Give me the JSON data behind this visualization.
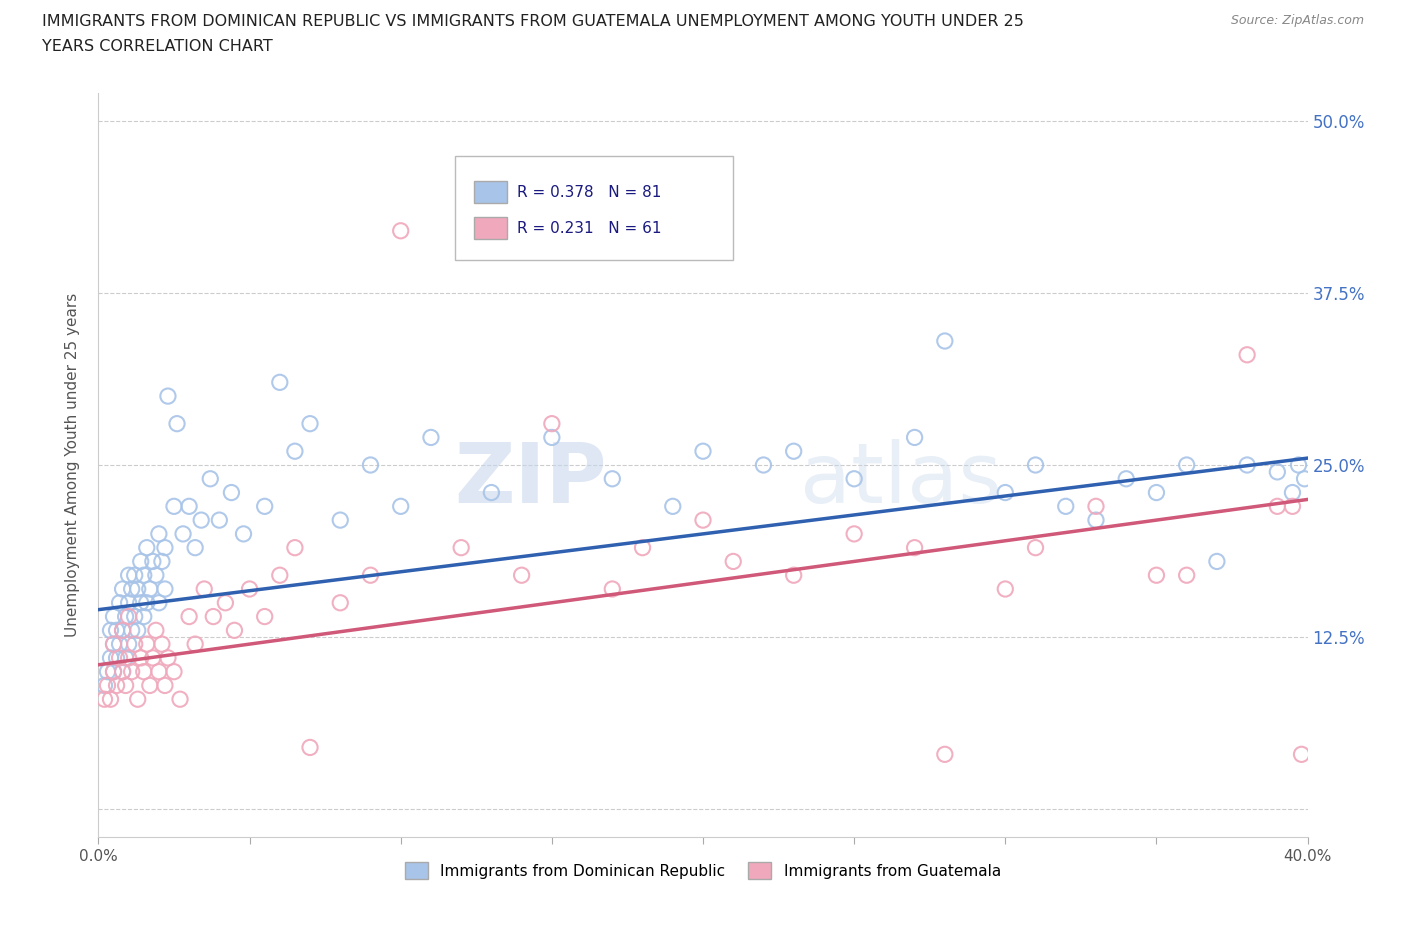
{
  "title_line1": "IMMIGRANTS FROM DOMINICAN REPUBLIC VS IMMIGRANTS FROM GUATEMALA UNEMPLOYMENT AMONG YOUTH UNDER 25",
  "title_line2": "YEARS CORRELATION CHART",
  "source": "Source: ZipAtlas.com",
  "xlabel_blue": "Immigrants from Dominican Republic",
  "xlabel_pink": "Immigrants from Guatemala",
  "ylabel": "Unemployment Among Youth under 25 years",
  "R_blue": 0.378,
  "N_blue": 81,
  "R_pink": 0.231,
  "N_pink": 61,
  "blue_color": "#a8c4e8",
  "pink_color": "#f0a8bc",
  "blue_line_color": "#3060b0",
  "pink_line_color": "#d05878",
  "xmin": 0.0,
  "xmax": 0.4,
  "ymin": -0.02,
  "ymax": 0.52,
  "yticks": [
    0.0,
    0.125,
    0.25,
    0.375,
    0.5
  ],
  "ytick_labels": [
    "",
    "12.5%",
    "25.0%",
    "37.5%",
    "50.0%"
  ],
  "xticks": [
    0.0,
    0.05,
    0.1,
    0.15,
    0.2,
    0.25,
    0.3,
    0.35,
    0.4
  ],
  "xtick_labels": [
    "0.0%",
    "",
    "",
    "",
    "",
    "",
    "",
    "",
    "40.0%"
  ],
  "watermark_zip": "ZIP",
  "watermark_atlas": "atlas",
  "background_color": "#ffffff",
  "blue_scatter_x": [
    0.002,
    0.003,
    0.004,
    0.004,
    0.005,
    0.005,
    0.005,
    0.006,
    0.006,
    0.007,
    0.007,
    0.008,
    0.008,
    0.008,
    0.009,
    0.009,
    0.01,
    0.01,
    0.01,
    0.011,
    0.011,
    0.012,
    0.012,
    0.013,
    0.013,
    0.014,
    0.014,
    0.015,
    0.015,
    0.016,
    0.016,
    0.017,
    0.018,
    0.019,
    0.02,
    0.02,
    0.021,
    0.022,
    0.022,
    0.023,
    0.025,
    0.026,
    0.028,
    0.03,
    0.032,
    0.034,
    0.037,
    0.04,
    0.044,
    0.048,
    0.055,
    0.06,
    0.065,
    0.07,
    0.08,
    0.09,
    0.1,
    0.11,
    0.13,
    0.15,
    0.17,
    0.19,
    0.2,
    0.22,
    0.23,
    0.25,
    0.27,
    0.28,
    0.3,
    0.31,
    0.32,
    0.33,
    0.34,
    0.35,
    0.36,
    0.37,
    0.38,
    0.39,
    0.395,
    0.397,
    0.399
  ],
  "blue_scatter_y": [
    0.09,
    0.1,
    0.11,
    0.13,
    0.1,
    0.12,
    0.14,
    0.11,
    0.13,
    0.12,
    0.15,
    0.1,
    0.13,
    0.16,
    0.11,
    0.14,
    0.12,
    0.15,
    0.17,
    0.13,
    0.16,
    0.14,
    0.17,
    0.13,
    0.16,
    0.15,
    0.18,
    0.14,
    0.17,
    0.15,
    0.19,
    0.16,
    0.18,
    0.17,
    0.15,
    0.2,
    0.18,
    0.16,
    0.19,
    0.3,
    0.22,
    0.28,
    0.2,
    0.22,
    0.19,
    0.21,
    0.24,
    0.21,
    0.23,
    0.2,
    0.22,
    0.31,
    0.26,
    0.28,
    0.21,
    0.25,
    0.22,
    0.27,
    0.23,
    0.27,
    0.24,
    0.22,
    0.26,
    0.25,
    0.26,
    0.24,
    0.27,
    0.34,
    0.23,
    0.25,
    0.22,
    0.21,
    0.24,
    0.23,
    0.25,
    0.18,
    0.25,
    0.245,
    0.23,
    0.25,
    0.24
  ],
  "pink_scatter_x": [
    0.002,
    0.003,
    0.004,
    0.005,
    0.005,
    0.006,
    0.007,
    0.008,
    0.008,
    0.009,
    0.01,
    0.01,
    0.011,
    0.012,
    0.013,
    0.014,
    0.015,
    0.016,
    0.017,
    0.018,
    0.019,
    0.02,
    0.021,
    0.022,
    0.023,
    0.025,
    0.027,
    0.03,
    0.032,
    0.035,
    0.038,
    0.042,
    0.045,
    0.05,
    0.055,
    0.06,
    0.065,
    0.07,
    0.08,
    0.09,
    0.1,
    0.12,
    0.14,
    0.15,
    0.17,
    0.18,
    0.2,
    0.21,
    0.23,
    0.25,
    0.27,
    0.28,
    0.3,
    0.31,
    0.33,
    0.35,
    0.36,
    0.38,
    0.39,
    0.395,
    0.398
  ],
  "pink_scatter_y": [
    0.08,
    0.09,
    0.08,
    0.1,
    0.12,
    0.09,
    0.11,
    0.1,
    0.13,
    0.09,
    0.11,
    0.14,
    0.1,
    0.12,
    0.08,
    0.11,
    0.1,
    0.12,
    0.09,
    0.11,
    0.13,
    0.1,
    0.12,
    0.09,
    0.11,
    0.1,
    0.08,
    0.14,
    0.12,
    0.16,
    0.14,
    0.15,
    0.13,
    0.16,
    0.14,
    0.17,
    0.19,
    0.045,
    0.15,
    0.17,
    0.42,
    0.19,
    0.17,
    0.28,
    0.16,
    0.19,
    0.21,
    0.18,
    0.17,
    0.2,
    0.19,
    0.04,
    0.16,
    0.19,
    0.22,
    0.17,
    0.17,
    0.33,
    0.22,
    0.22,
    0.04
  ],
  "blue_trend_x0": 0.0,
  "blue_trend_y0": 0.145,
  "blue_trend_x1": 0.4,
  "blue_trend_y1": 0.255,
  "pink_trend_x0": 0.0,
  "pink_trend_y0": 0.105,
  "pink_trend_x1": 0.4,
  "pink_trend_y1": 0.225
}
